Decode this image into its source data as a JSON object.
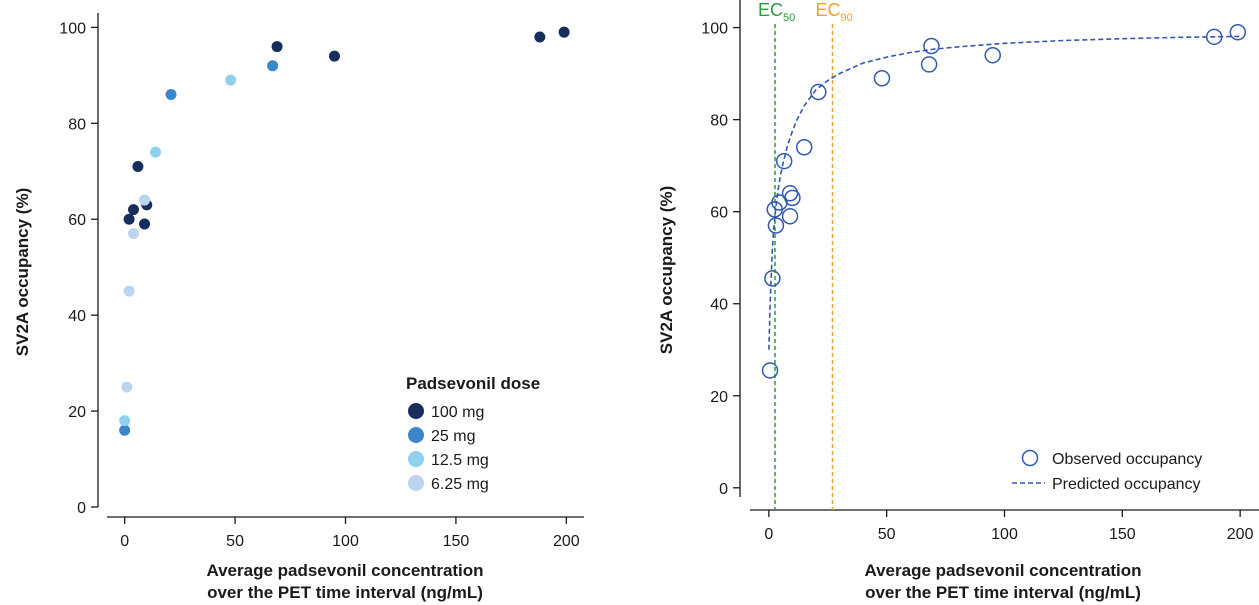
{
  "chart_data": [
    {
      "type": "scatter",
      "title": "",
      "xlabel": [
        "Average padsevonil concentration",
        "over the PET time interval (ng/mL)"
      ],
      "ylabel": "SV2A occupancy (%)",
      "xlim": [
        -8,
        208
      ],
      "ylim": [
        0,
        103
      ],
      "xticks": [
        0,
        50,
        100,
        150,
        200
      ],
      "yticks": [
        0,
        20,
        40,
        60,
        80,
        100
      ],
      "grid": false,
      "legend": {
        "title": "Padsevonil dose",
        "placement": "bottom-right"
      },
      "series": [
        {
          "name": "100 mg",
          "color": "#172e5c",
          "points": [
            {
              "x": 2,
              "y": 60
            },
            {
              "x": 4,
              "y": 62
            },
            {
              "x": 6,
              "y": 71
            },
            {
              "x": 9,
              "y": 59
            },
            {
              "x": 10,
              "y": 63
            },
            {
              "x": 69,
              "y": 96
            },
            {
              "x": 95,
              "y": 94
            },
            {
              "x": 188,
              "y": 98
            },
            {
              "x": 199,
              "y": 99
            }
          ]
        },
        {
          "name": "25 mg",
          "color": "#3a86c8",
          "points": [
            {
              "x": 0,
              "y": 16
            },
            {
              "x": 21,
              "y": 86
            },
            {
              "x": 67,
              "y": 92
            }
          ]
        },
        {
          "name": "12.5 mg",
          "color": "#8fd0ec",
          "points": [
            {
              "x": 0,
              "y": 18
            },
            {
              "x": 14,
              "y": 74
            },
            {
              "x": 48,
              "y": 89
            }
          ]
        },
        {
          "name": "6.25 mg",
          "color": "#bcd4f0",
          "points": [
            {
              "x": 1,
              "y": 25
            },
            {
              "x": 2,
              "y": 45
            },
            {
              "x": 4,
              "y": 57
            },
            {
              "x": 9,
              "y": 64
            }
          ]
        }
      ]
    },
    {
      "type": "scatter",
      "title": "",
      "xlabel": [
        "Average padsevonil concentration",
        "over the PET time interval (ng/mL)"
      ],
      "ylabel": "SV2A occupancy (%)",
      "xlim": [
        -8,
        208
      ],
      "ylim": [
        -2,
        106
      ],
      "xticks": [
        0,
        50,
        100,
        150,
        200
      ],
      "yticks": [
        0,
        20,
        40,
        60,
        80,
        100
      ],
      "grid": false,
      "legend": {
        "placement": "bottom-right"
      },
      "observed": {
        "name": "Observed occupancy",
        "color": "#3358b0",
        "points": [
          {
            "x": 0.5,
            "y": 25.5
          },
          {
            "x": 1.5,
            "y": 45.5
          },
          {
            "x": 3,
            "y": 57
          },
          {
            "x": 2.5,
            "y": 60.5
          },
          {
            "x": 4.5,
            "y": 62
          },
          {
            "x": 6.5,
            "y": 71
          },
          {
            "x": 9,
            "y": 59
          },
          {
            "x": 9,
            "y": 64
          },
          {
            "x": 10,
            "y": 63
          },
          {
            "x": 15,
            "y": 74
          },
          {
            "x": 21,
            "y": 86
          },
          {
            "x": 48,
            "y": 89
          },
          {
            "x": 68,
            "y": 92
          },
          {
            "x": 69,
            "y": 96
          },
          {
            "x": 95,
            "y": 94
          },
          {
            "x": 189,
            "y": 98
          },
          {
            "x": 199,
            "y": 99
          }
        ]
      },
      "predicted": {
        "name": "Predicted occupancy",
        "color": "#3358b0",
        "curve": [
          {
            "x": 0,
            "y": 30
          },
          {
            "x": 0.5,
            "y": 39
          },
          {
            "x": 1,
            "y": 46
          },
          {
            "x": 1.5,
            "y": 52
          },
          {
            "x": 2,
            "y": 56
          },
          {
            "x": 3,
            "y": 61
          },
          {
            "x": 4,
            "y": 65
          },
          {
            "x": 5,
            "y": 68
          },
          {
            "x": 6,
            "y": 70.5
          },
          {
            "x": 8,
            "y": 74.5
          },
          {
            "x": 10,
            "y": 77.5
          },
          {
            "x": 12,
            "y": 80
          },
          {
            "x": 15,
            "y": 83
          },
          {
            "x": 20,
            "y": 86.5
          },
          {
            "x": 25,
            "y": 88.5
          },
          {
            "x": 30,
            "y": 90
          },
          {
            "x": 40,
            "y": 92.3
          },
          {
            "x": 50,
            "y": 93.6
          },
          {
            "x": 60,
            "y": 94.6
          },
          {
            "x": 70,
            "y": 95.3
          },
          {
            "x": 80,
            "y": 95.8
          },
          {
            "x": 100,
            "y": 96.6
          },
          {
            "x": 125,
            "y": 97.2
          },
          {
            "x": 150,
            "y": 97.6
          },
          {
            "x": 175,
            "y": 97.9
          },
          {
            "x": 200,
            "y": 98.1
          }
        ]
      },
      "reference_lines": [
        {
          "label": "EC",
          "subscript": "50",
          "x": 2.6,
          "color": "#2a9a3c"
        },
        {
          "label": "EC",
          "subscript": "90",
          "x": 27,
          "color": "#f2a31c"
        }
      ]
    }
  ]
}
